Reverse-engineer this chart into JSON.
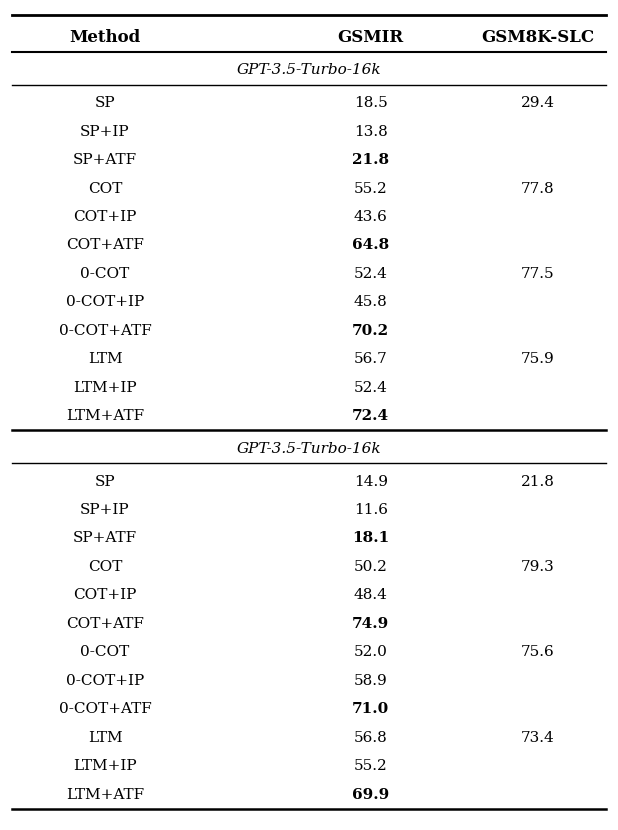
{
  "header": [
    "Method",
    "GSMIR",
    "GSM8K-SLC"
  ],
  "section1_label": "GPT-3.5-Turbo-16k",
  "section2_label": "GPT-3.5-Turbo-16k",
  "section1_rows": [
    {
      "method": "SP",
      "gsmir": "18.5",
      "gsm8k": "29.4",
      "bold_gsmir": false
    },
    {
      "method": "SP+IP",
      "gsmir": "13.8",
      "gsm8k": "",
      "bold_gsmir": false
    },
    {
      "method": "SP+ATF",
      "gsmir": "21.8",
      "gsm8k": "",
      "bold_gsmir": true
    },
    {
      "method": "COT",
      "gsmir": "55.2",
      "gsm8k": "77.8",
      "bold_gsmir": false
    },
    {
      "method": "COT+IP",
      "gsmir": "43.6",
      "gsm8k": "",
      "bold_gsmir": false
    },
    {
      "method": "COT+ATF",
      "gsmir": "64.8",
      "gsm8k": "",
      "bold_gsmir": true
    },
    {
      "method": "0-COT",
      "gsmir": "52.4",
      "gsm8k": "77.5",
      "bold_gsmir": false
    },
    {
      "method": "0-COT+IP",
      "gsmir": "45.8",
      "gsm8k": "",
      "bold_gsmir": false
    },
    {
      "method": "0-COT+ATF",
      "gsmir": "70.2",
      "gsm8k": "",
      "bold_gsmir": true
    },
    {
      "method": "LTM",
      "gsmir": "56.7",
      "gsm8k": "75.9",
      "bold_gsmir": false
    },
    {
      "method": "LTM+IP",
      "gsmir": "52.4",
      "gsm8k": "",
      "bold_gsmir": false
    },
    {
      "method": "LTM+ATF",
      "gsmir": "72.4",
      "gsm8k": "",
      "bold_gsmir": true
    }
  ],
  "section2_rows": [
    {
      "method": "SP",
      "gsmir": "14.9",
      "gsm8k": "21.8",
      "bold_gsmir": false
    },
    {
      "method": "SP+IP",
      "gsmir": "11.6",
      "gsm8k": "",
      "bold_gsmir": false
    },
    {
      "method": "SP+ATF",
      "gsmir": "18.1",
      "gsm8k": "",
      "bold_gsmir": true
    },
    {
      "method": "COT",
      "gsmir": "50.2",
      "gsm8k": "79.3",
      "bold_gsmir": false
    },
    {
      "method": "COT+IP",
      "gsmir": "48.4",
      "gsm8k": "",
      "bold_gsmir": false
    },
    {
      "method": "COT+ATF",
      "gsmir": "74.9",
      "gsm8k": "",
      "bold_gsmir": true
    },
    {
      "method": "0-COT",
      "gsmir": "52.0",
      "gsm8k": "75.6",
      "bold_gsmir": false
    },
    {
      "method": "0-COT+IP",
      "gsmir": "58.9",
      "gsm8k": "",
      "bold_gsmir": false
    },
    {
      "method": "0-COT+ATF",
      "gsmir": "71.0",
      "gsm8k": "",
      "bold_gsmir": true
    },
    {
      "method": "LTM",
      "gsmir": "56.8",
      "gsm8k": "73.4",
      "bold_gsmir": false
    },
    {
      "method": "LTM+IP",
      "gsmir": "55.2",
      "gsm8k": "",
      "bold_gsmir": false
    },
    {
      "method": "LTM+ATF",
      "gsmir": "69.9",
      "gsm8k": "",
      "bold_gsmir": true
    }
  ],
  "fig_width": 6.18,
  "fig_height": 8.3,
  "font_size": 11.0,
  "header_font_size": 12.0,
  "section_font_size": 11.0,
  "col_method": 0.17,
  "col_gsmir": 0.6,
  "col_gsm8k": 0.87
}
